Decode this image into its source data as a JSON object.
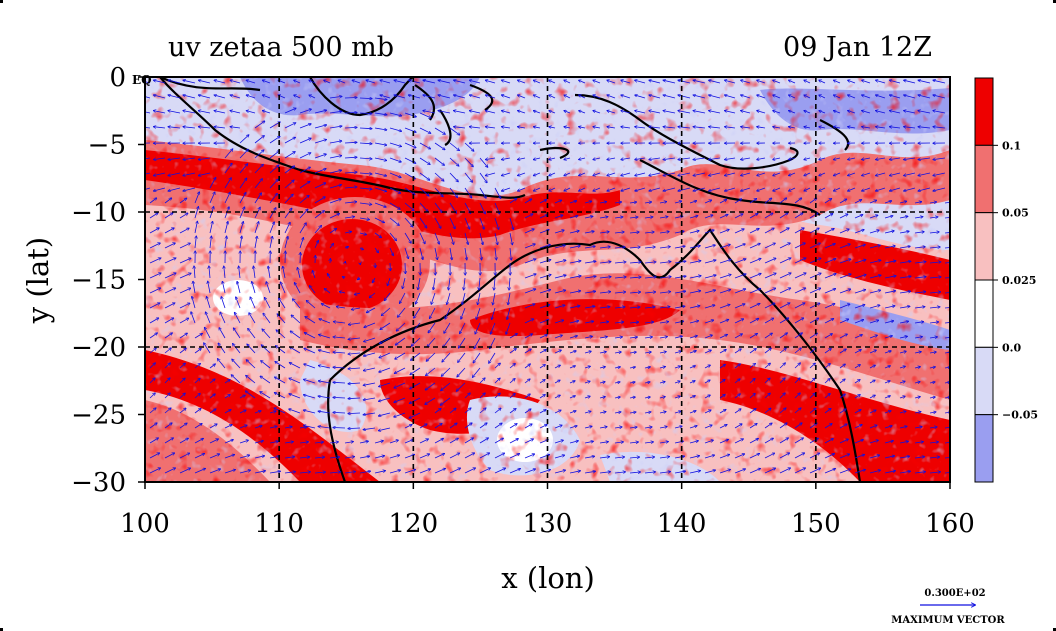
{
  "plot": {
    "title_left": "uv zetaa 500 mb",
    "title_right": "09 Jan 12Z",
    "xlabel": "x (lon)",
    "ylabel": "y (lat)",
    "eq_label": "EQ",
    "xticks": [
      {
        "v": 100,
        "label": "100"
      },
      {
        "v": 110,
        "label": "110"
      },
      {
        "v": 120,
        "label": "120"
      },
      {
        "v": 130,
        "label": "130"
      },
      {
        "v": 140,
        "label": "140"
      },
      {
        "v": 150,
        "label": "150"
      },
      {
        "v": 160,
        "label": "160"
      }
    ],
    "yticks": [
      {
        "v": 0,
        "label": "0"
      },
      {
        "v": -5,
        "label": "−5"
      },
      {
        "v": -10,
        "label": "−10"
      },
      {
        "v": -15,
        "label": "−15"
      },
      {
        "v": -20,
        "label": "−20"
      },
      {
        "v": -25,
        "label": "−25"
      },
      {
        "v": -30,
        "label": "−30"
      }
    ],
    "lon_range": [
      100,
      160
    ],
    "lat_range": [
      -30,
      0
    ],
    "grid_lon": [
      110,
      120,
      130,
      140,
      150
    ],
    "grid_lat": [
      -10,
      -20
    ]
  },
  "colorbar": {
    "colors": [
      "#ee0000",
      "#f07070",
      "#f8c0c0",
      "#ffffff",
      "#d8daf6",
      "#9a9ef0"
    ],
    "labels": [
      "0.1",
      "0.05",
      "0.025",
      "0.0",
      "−0.05"
    ]
  },
  "vector_key": {
    "value": "0.300E+02",
    "label": "MAXIMUM VECTOR"
  },
  "colors": {
    "strong_pos": "#ee0000",
    "mid_pos": "#f07070",
    "weak_pos": "#f8c0c0",
    "neutral": "#ffffff",
    "weak_neg": "#d8daf6",
    "strong_neg": "#9a9ef0",
    "vector": "#1010e0",
    "coast": "#000000"
  }
}
